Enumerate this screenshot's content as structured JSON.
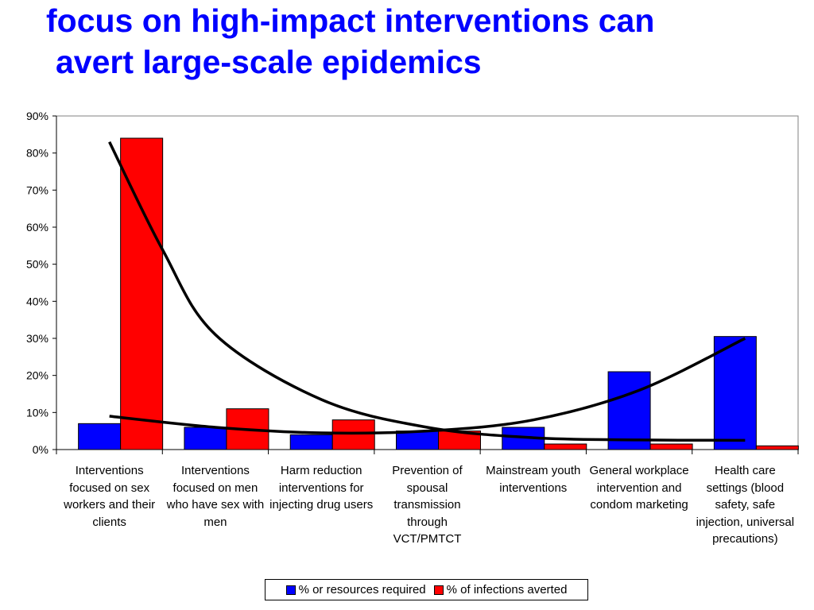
{
  "slide_title": {
    "line1": "focus on high-impact interventions can",
    "line2": "avert large-scale epidemics"
  },
  "colors": {
    "title": "#0000ff",
    "series_resources": "#0000ff",
    "series_averted": "#ff0000",
    "trend": "#000000"
  },
  "chart_data": {
    "type": "bar",
    "title": "",
    "xlabel": "",
    "ylabel": "",
    "ylim": [
      0,
      90
    ],
    "ytick_labels": [
      "0%",
      "10%",
      "20%",
      "30%",
      "40%",
      "50%",
      "60%",
      "70%",
      "80%",
      "90%"
    ],
    "grid": false,
    "legend_position": "bottom",
    "categories": [
      "Interventions focused on sex workers and their clients",
      "Interventions focused on men who have sex with men",
      "Harm reduction interventions for injecting drug users",
      "Prevention of spousal transmission through VCT/PMTCT",
      "Mainstream youth interventions",
      "General workplace intervention and condom marketing",
      "Health care settings (blood safety, safe injection, universal precautions)"
    ],
    "series": [
      {
        "name": "% or resources required",
        "values": [
          7,
          6,
          4,
          5,
          6,
          21,
          30.5
        ]
      },
      {
        "name": "% of infections averted",
        "values": [
          84,
          11,
          8,
          5,
          1.5,
          1.5,
          1
        ]
      }
    ],
    "trendlines": [
      {
        "name": "decreasing trend",
        "points": [
          [
            1,
            83
          ],
          [
            1.5,
            54
          ],
          [
            2,
            31
          ],
          [
            3,
            13.5
          ],
          [
            4,
            6
          ],
          [
            5,
            3.2
          ],
          [
            6,
            2.6
          ],
          [
            7,
            2.5
          ]
        ]
      },
      {
        "name": "increasing trend",
        "points": [
          [
            1,
            9
          ],
          [
            2,
            6
          ],
          [
            3,
            4.5
          ],
          [
            4,
            5
          ],
          [
            5,
            8
          ],
          [
            6,
            16
          ],
          [
            7,
            30
          ]
        ]
      }
    ]
  }
}
